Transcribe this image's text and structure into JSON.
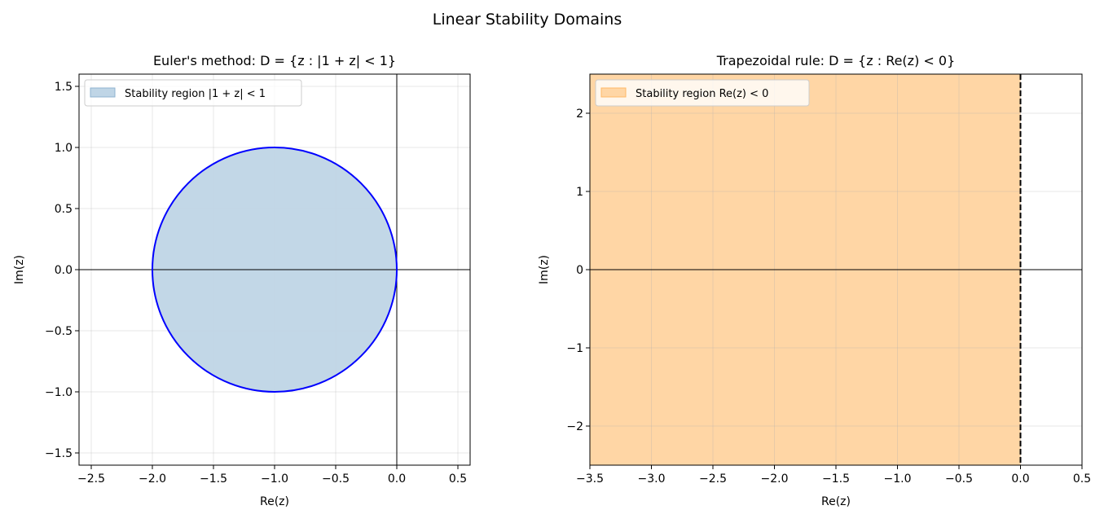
{
  "suptitle": "Linear Stability Domains",
  "chart_data": [
    {
      "type": "area",
      "title": "Euler's method: D = {z : |1 + z| < 1}",
      "xlabel": "Re(z)",
      "ylabel": "Im(z)",
      "xlim": [
        -2.6,
        0.6
      ],
      "ylim": [
        -1.6,
        1.6
      ],
      "xticks": [
        -2.5,
        -2.0,
        -1.5,
        -1.0,
        -0.5,
        0.0,
        0.5
      ],
      "yticks": [
        -1.5,
        -1.0,
        -0.5,
        0.0,
        0.5,
        1.0,
        1.5
      ],
      "xtick_labels": [
        "−2.5",
        "−2.0",
        "−1.5",
        "−1.0",
        "−0.5",
        "0.0",
        "0.5"
      ],
      "ytick_labels": [
        "−1.5",
        "−1.0",
        "−0.5",
        "0.0",
        "0.5",
        "1.0",
        "1.5"
      ],
      "grid": true,
      "region": {
        "shape": "disk",
        "center": [
          -1,
          0
        ],
        "radius": 1,
        "fill": "#bfd5e6",
        "edge": "#0000ff"
      },
      "legend": {
        "placement": "top-left",
        "entries": [
          "Stability region |1 + z| < 1"
        ]
      }
    },
    {
      "type": "area",
      "title": "Trapezoidal rule: D = {z : Re(z) < 0}",
      "xlabel": "Re(z)",
      "ylabel": "Im(z)",
      "xlim": [
        -3.5,
        0.5
      ],
      "ylim": [
        -2.5,
        2.5
      ],
      "xticks": [
        -3.5,
        -3.0,
        -2.5,
        -2.0,
        -1.5,
        -1.0,
        -0.5,
        0.0,
        0.5
      ],
      "yticks": [
        -2,
        -1,
        0,
        1,
        2
      ],
      "xtick_labels": [
        "−3.5",
        "−3.0",
        "−2.5",
        "−2.0",
        "−1.5",
        "−1.0",
        "−0.5",
        "0.0",
        "0.5"
      ],
      "ytick_labels": [
        "−2",
        "−1",
        "0",
        "1",
        "2"
      ],
      "grid": true,
      "region": {
        "shape": "half-plane",
        "boundary_x": 0,
        "side": "left",
        "fill": "#ffd6a5",
        "edge": "#000000",
        "edge_style": "dashed"
      },
      "legend": {
        "placement": "top-left",
        "entries": [
          "Stability region Re(z) < 0"
        ]
      }
    }
  ]
}
